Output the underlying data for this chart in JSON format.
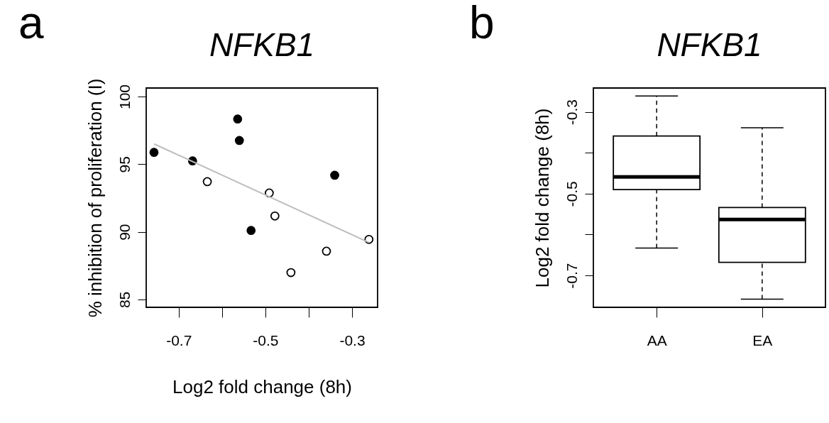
{
  "chart_data": [
    {
      "type": "scatter",
      "title": "NFKB1",
      "xlabel": "Log2 fold change (8h)",
      "ylabel": "% inhibition of proliferation (I)",
      "annotations": [
        "a"
      ],
      "grid": false,
      "xlim": [
        -0.775,
        -0.241
      ],
      "xticks": [
        -0.7,
        {
          "value": -0.6,
          "label": null
        },
        -0.5,
        {
          "value": -0.4,
          "label": null
        },
        -0.3
      ],
      "ylim": [
        84.42,
        100.63
      ],
      "yticks": [
        85,
        90,
        95,
        100
      ],
      "series": [
        {
          "color": "#000000",
          "marker": "circle",
          "x": [
            -0.757,
            -0.668,
            -0.564,
            -0.56,
            -0.533,
            -0.34
          ],
          "values": [
            95.87,
            95.24,
            98.34,
            96.75,
            90.1,
            94.18
          ]
        },
        {
          "color": "#ffffff",
          "marker": "circle",
          "x": [
            -0.634,
            -0.491,
            -0.478,
            -0.441,
            -0.359,
            -0.261
          ],
          "values": [
            93.71,
            92.87,
            91.17,
            86.99,
            88.57,
            89.44
          ]
        },
        {
          "type": "line",
          "color": "#bebebe",
          "x": [
            -0.757,
            -0.261
          ],
          "values": [
            96.5,
            89.21
          ]
        }
      ]
    },
    {
      "type": "box",
      "title": "NFKB1",
      "ylabel": "Log2 fold change (8h)",
      "annotations": [
        "b"
      ],
      "grid": false,
      "categories": [
        "AA",
        "EA"
      ],
      "ylim": [
        -0.778,
        -0.2416
      ],
      "yticks": [
        -0.3,
        {
          "value": -0.4,
          "label": null
        },
        -0.5,
        {
          "value": -0.6,
          "label": null
        },
        -0.7
      ],
      "boxes": [
        {
          "low": -0.633,
          "q1": -0.49,
          "median": -0.459,
          "q3": -0.359,
          "high": -0.261
        },
        {
          "low": -0.758,
          "q1": -0.668,
          "median": -0.563,
          "q3": -0.534,
          "high": -0.339
        }
      ]
    }
  ]
}
